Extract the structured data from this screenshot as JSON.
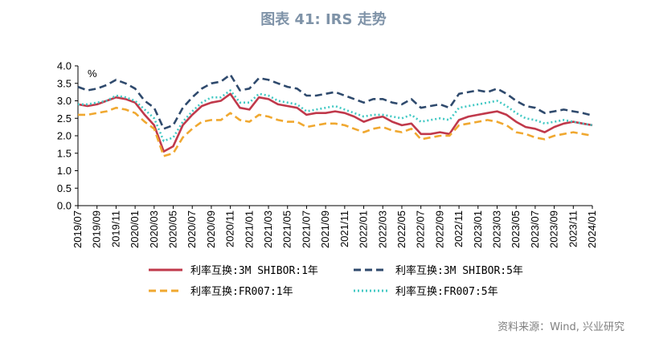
{
  "title": "图表 41: IRS 走势",
  "source": "资料来源：Wind, 兴业研究",
  "chart_data": {
    "type": "line",
    "unit": "%",
    "ylim": [
      0.0,
      4.0
    ],
    "y_ticks": [
      "0.0",
      "0.5",
      "1.0",
      "1.5",
      "2.0",
      "2.5",
      "3.0",
      "3.5",
      "4.0"
    ],
    "x_ticks": [
      "2019/07",
      "2019/09",
      "2019/11",
      "2020/01",
      "2020/03",
      "2020/05",
      "2020/07",
      "2020/09",
      "2020/11",
      "2021/01",
      "2021/03",
      "2021/05",
      "2021/07",
      "2021/09",
      "2021/11",
      "2022/01",
      "2022/03",
      "2022/05",
      "2022/07",
      "2022/09",
      "2022/11",
      "2023/01",
      "2023/03",
      "2023/05",
      "2023/07",
      "2023/09",
      "2023/11",
      "2024/01"
    ],
    "x_range": [
      "2019/07",
      "2024/01"
    ],
    "legend_position": "bottom",
    "series": [
      {
        "name": "利率互换:3M SHIBOR:1年",
        "color": "#c0394b",
        "style": "solid",
        "points": [
          [
            "2019/07",
            2.9
          ],
          [
            "2019/08",
            2.85
          ],
          [
            "2019/09",
            2.9
          ],
          [
            "2019/10",
            3.0
          ],
          [
            "2019/11",
            3.1
          ],
          [
            "2019/12",
            3.05
          ],
          [
            "2020/01",
            2.95
          ],
          [
            "2020/02",
            2.6
          ],
          [
            "2020/03",
            2.3
          ],
          [
            "2020/04",
            1.55
          ],
          [
            "2020/05",
            1.7
          ],
          [
            "2020/06",
            2.3
          ],
          [
            "2020/07",
            2.6
          ],
          [
            "2020/08",
            2.85
          ],
          [
            "2020/09",
            2.95
          ],
          [
            "2020/10",
            3.0
          ],
          [
            "2020/11",
            3.2
          ],
          [
            "2020/12",
            2.8
          ],
          [
            "2021/01",
            2.75
          ],
          [
            "2021/02",
            3.1
          ],
          [
            "2021/03",
            3.05
          ],
          [
            "2021/04",
            2.9
          ],
          [
            "2021/05",
            2.85
          ],
          [
            "2021/06",
            2.8
          ],
          [
            "2021/07",
            2.6
          ],
          [
            "2021/08",
            2.65
          ],
          [
            "2021/09",
            2.65
          ],
          [
            "2021/10",
            2.7
          ],
          [
            "2021/11",
            2.65
          ],
          [
            "2021/12",
            2.55
          ],
          [
            "2022/01",
            2.4
          ],
          [
            "2022/02",
            2.5
          ],
          [
            "2022/03",
            2.55
          ],
          [
            "2022/04",
            2.4
          ],
          [
            "2022/05",
            2.3
          ],
          [
            "2022/06",
            2.35
          ],
          [
            "2022/07",
            2.05
          ],
          [
            "2022/08",
            2.05
          ],
          [
            "2022/09",
            2.1
          ],
          [
            "2022/10",
            2.05
          ],
          [
            "2022/11",
            2.45
          ],
          [
            "2022/12",
            2.55
          ],
          [
            "2023/01",
            2.6
          ],
          [
            "2023/02",
            2.65
          ],
          [
            "2023/03",
            2.7
          ],
          [
            "2023/04",
            2.6
          ],
          [
            "2023/05",
            2.4
          ],
          [
            "2023/06",
            2.25
          ],
          [
            "2023/07",
            2.2
          ],
          [
            "2023/08",
            2.1
          ],
          [
            "2023/09",
            2.25
          ],
          [
            "2023/10",
            2.35
          ],
          [
            "2023/11",
            2.4
          ],
          [
            "2023/12",
            2.35
          ],
          [
            "2024/01",
            2.3
          ]
        ]
      },
      {
        "name": "利率互换:3M SHIBOR:5年",
        "color": "#2f4a6d",
        "style": "dashed",
        "points": [
          [
            "2019/07",
            3.4
          ],
          [
            "2019/08",
            3.3
          ],
          [
            "2019/09",
            3.35
          ],
          [
            "2019/10",
            3.45
          ],
          [
            "2019/11",
            3.6
          ],
          [
            "2019/12",
            3.5
          ],
          [
            "2020/01",
            3.35
          ],
          [
            "2020/02",
            3.0
          ],
          [
            "2020/03",
            2.8
          ],
          [
            "2020/04",
            2.2
          ],
          [
            "2020/05",
            2.3
          ],
          [
            "2020/06",
            2.8
          ],
          [
            "2020/07",
            3.1
          ],
          [
            "2020/08",
            3.35
          ],
          [
            "2020/09",
            3.5
          ],
          [
            "2020/10",
            3.55
          ],
          [
            "2020/11",
            3.75
          ],
          [
            "2020/12",
            3.3
          ],
          [
            "2021/01",
            3.35
          ],
          [
            "2021/02",
            3.65
          ],
          [
            "2021/03",
            3.6
          ],
          [
            "2021/04",
            3.5
          ],
          [
            "2021/05",
            3.4
          ],
          [
            "2021/06",
            3.35
          ],
          [
            "2021/07",
            3.15
          ],
          [
            "2021/08",
            3.15
          ],
          [
            "2021/09",
            3.2
          ],
          [
            "2021/10",
            3.25
          ],
          [
            "2021/11",
            3.15
          ],
          [
            "2021/12",
            3.05
          ],
          [
            "2022/01",
            2.95
          ],
          [
            "2022/02",
            3.05
          ],
          [
            "2022/03",
            3.05
          ],
          [
            "2022/04",
            2.95
          ],
          [
            "2022/05",
            2.9
          ],
          [
            "2022/06",
            3.05
          ],
          [
            "2022/07",
            2.8
          ],
          [
            "2022/08",
            2.85
          ],
          [
            "2022/09",
            2.9
          ],
          [
            "2022/10",
            2.8
          ],
          [
            "2022/11",
            3.2
          ],
          [
            "2022/12",
            3.25
          ],
          [
            "2023/01",
            3.3
          ],
          [
            "2023/02",
            3.25
          ],
          [
            "2023/03",
            3.35
          ],
          [
            "2023/04",
            3.2
          ],
          [
            "2023/05",
            3.0
          ],
          [
            "2023/06",
            2.85
          ],
          [
            "2023/07",
            2.8
          ],
          [
            "2023/08",
            2.65
          ],
          [
            "2023/09",
            2.7
          ],
          [
            "2023/10",
            2.75
          ],
          [
            "2023/11",
            2.7
          ],
          [
            "2023/12",
            2.65
          ],
          [
            "2024/01",
            2.58
          ]
        ]
      },
      {
        "name": "利率互换:FR007:1年",
        "color": "#f0a830",
        "style": "dashed",
        "points": [
          [
            "2019/07",
            2.6
          ],
          [
            "2019/08",
            2.6
          ],
          [
            "2019/09",
            2.65
          ],
          [
            "2019/10",
            2.7
          ],
          [
            "2019/11",
            2.8
          ],
          [
            "2019/12",
            2.75
          ],
          [
            "2020/01",
            2.65
          ],
          [
            "2020/02",
            2.4
          ],
          [
            "2020/03",
            2.2
          ],
          [
            "2020/04",
            1.42
          ],
          [
            "2020/05",
            1.5
          ],
          [
            "2020/06",
            1.95
          ],
          [
            "2020/07",
            2.2
          ],
          [
            "2020/08",
            2.4
          ],
          [
            "2020/09",
            2.45
          ],
          [
            "2020/10",
            2.45
          ],
          [
            "2020/11",
            2.65
          ],
          [
            "2020/12",
            2.45
          ],
          [
            "2021/01",
            2.4
          ],
          [
            "2021/02",
            2.6
          ],
          [
            "2021/03",
            2.55
          ],
          [
            "2021/04",
            2.45
          ],
          [
            "2021/05",
            2.4
          ],
          [
            "2021/06",
            2.4
          ],
          [
            "2021/07",
            2.25
          ],
          [
            "2021/08",
            2.3
          ],
          [
            "2021/09",
            2.35
          ],
          [
            "2021/10",
            2.35
          ],
          [
            "2021/11",
            2.3
          ],
          [
            "2021/12",
            2.2
          ],
          [
            "2022/01",
            2.1
          ],
          [
            "2022/02",
            2.2
          ],
          [
            "2022/03",
            2.25
          ],
          [
            "2022/04",
            2.15
          ],
          [
            "2022/05",
            2.1
          ],
          [
            "2022/06",
            2.2
          ],
          [
            "2022/07",
            1.9
          ],
          [
            "2022/08",
            1.95
          ],
          [
            "2022/09",
            2.0
          ],
          [
            "2022/10",
            2.0
          ],
          [
            "2022/11",
            2.3
          ],
          [
            "2022/12",
            2.35
          ],
          [
            "2023/01",
            2.4
          ],
          [
            "2023/02",
            2.45
          ],
          [
            "2023/03",
            2.4
          ],
          [
            "2023/04",
            2.3
          ],
          [
            "2023/05",
            2.1
          ],
          [
            "2023/06",
            2.05
          ],
          [
            "2023/07",
            1.95
          ],
          [
            "2023/08",
            1.9
          ],
          [
            "2023/09",
            2.0
          ],
          [
            "2023/10",
            2.05
          ],
          [
            "2023/11",
            2.1
          ],
          [
            "2023/12",
            2.05
          ],
          [
            "2024/01",
            2.0
          ]
        ]
      },
      {
        "name": "利率互换:FR007:5年",
        "color": "#43c9c4",
        "style": "dotted",
        "points": [
          [
            "2019/07",
            2.9
          ],
          [
            "2019/08",
            2.9
          ],
          [
            "2019/09",
            2.95
          ],
          [
            "2019/10",
            3.0
          ],
          [
            "2019/11",
            3.15
          ],
          [
            "2019/12",
            3.1
          ],
          [
            "2020/01",
            3.0
          ],
          [
            "2020/02",
            2.75
          ],
          [
            "2020/03",
            2.5
          ],
          [
            "2020/04",
            1.85
          ],
          [
            "2020/05",
            1.95
          ],
          [
            "2020/06",
            2.4
          ],
          [
            "2020/07",
            2.7
          ],
          [
            "2020/08",
            2.95
          ],
          [
            "2020/09",
            3.1
          ],
          [
            "2020/10",
            3.1
          ],
          [
            "2020/11",
            3.3
          ],
          [
            "2020/12",
            2.95
          ],
          [
            "2021/01",
            2.95
          ],
          [
            "2021/02",
            3.2
          ],
          [
            "2021/03",
            3.15
          ],
          [
            "2021/04",
            3.0
          ],
          [
            "2021/05",
            2.95
          ],
          [
            "2021/06",
            2.9
          ],
          [
            "2021/07",
            2.7
          ],
          [
            "2021/08",
            2.75
          ],
          [
            "2021/09",
            2.8
          ],
          [
            "2021/10",
            2.85
          ],
          [
            "2021/11",
            2.75
          ],
          [
            "2021/12",
            2.65
          ],
          [
            "2022/01",
            2.55
          ],
          [
            "2022/02",
            2.6
          ],
          [
            "2022/03",
            2.6
          ],
          [
            "2022/04",
            2.55
          ],
          [
            "2022/05",
            2.5
          ],
          [
            "2022/06",
            2.6
          ],
          [
            "2022/07",
            2.4
          ],
          [
            "2022/08",
            2.45
          ],
          [
            "2022/09",
            2.5
          ],
          [
            "2022/10",
            2.45
          ],
          [
            "2022/11",
            2.8
          ],
          [
            "2022/12",
            2.85
          ],
          [
            "2023/01",
            2.9
          ],
          [
            "2023/02",
            2.95
          ],
          [
            "2023/03",
            3.0
          ],
          [
            "2023/04",
            2.85
          ],
          [
            "2023/05",
            2.65
          ],
          [
            "2023/06",
            2.5
          ],
          [
            "2023/07",
            2.45
          ],
          [
            "2023/08",
            2.35
          ],
          [
            "2023/09",
            2.4
          ],
          [
            "2023/10",
            2.45
          ],
          [
            "2023/11",
            2.4
          ],
          [
            "2023/12",
            2.35
          ],
          [
            "2024/01",
            2.3
          ]
        ]
      }
    ]
  }
}
